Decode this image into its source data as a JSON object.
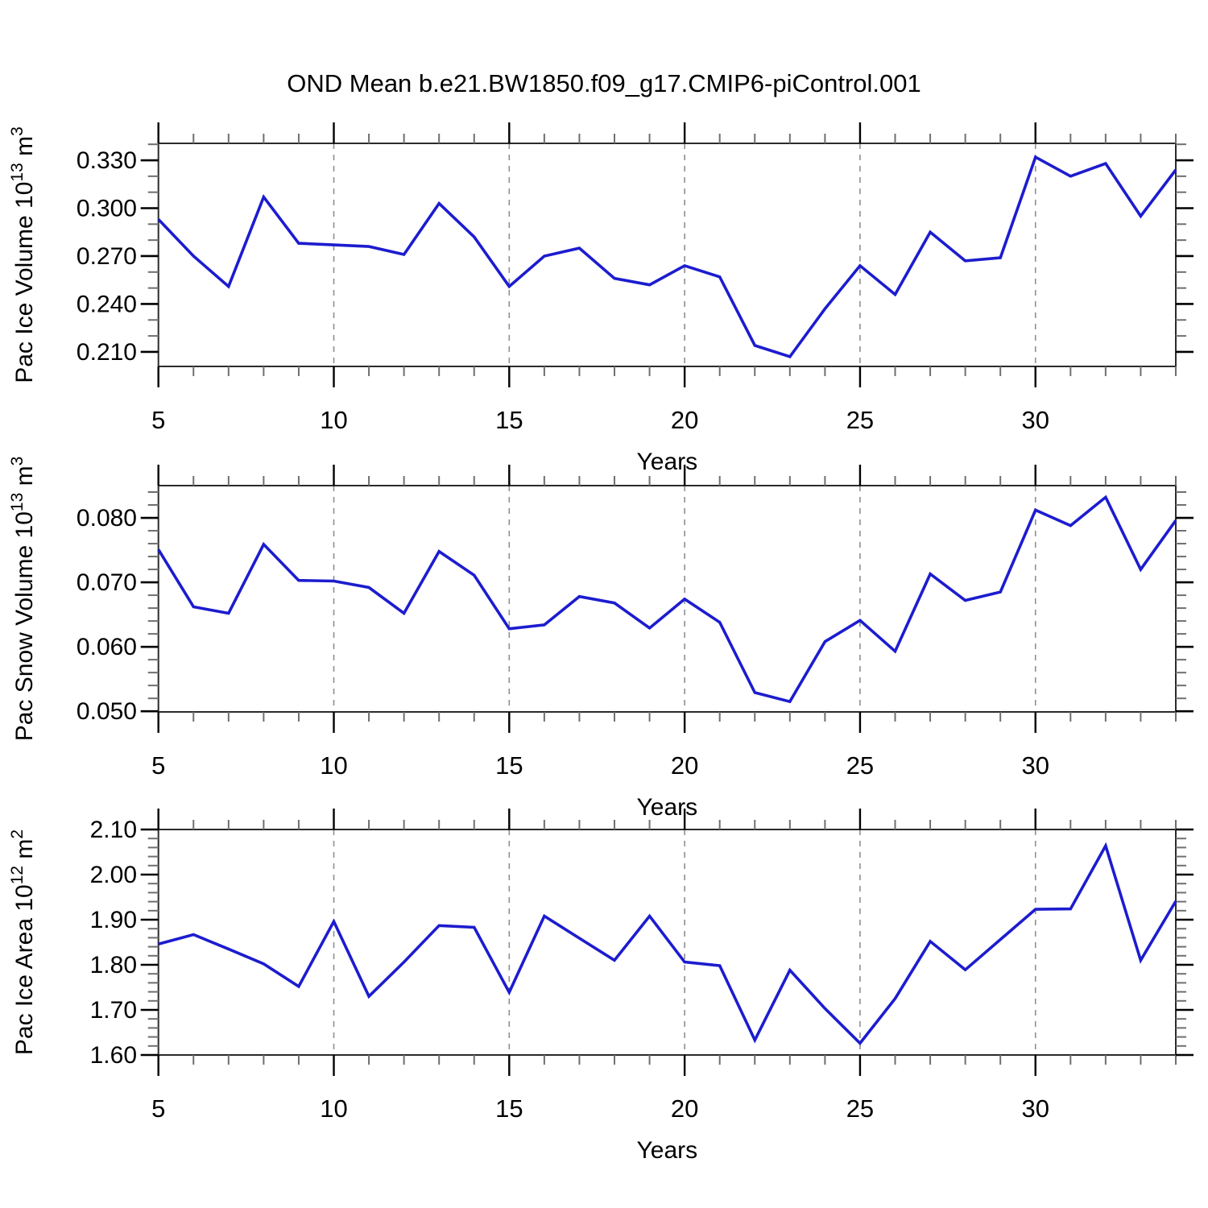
{
  "title": "OND Mean b.e21.BW1850.f09_g17.CMIP6-piControl.001",
  "xlabel": "Years",
  "colors": {
    "line": "#1c1ccf",
    "grid": "#8f8f8f",
    "axis": "#2b2b2b",
    "tick_major": "#000000",
    "tick_minor": "#6f6f6f",
    "text": "#000000"
  },
  "x_major_tick_labels": [
    "5",
    "10",
    "15",
    "20",
    "25",
    "30"
  ],
  "chart_data": [
    {
      "type": "line",
      "name": "pac-ice-volume",
      "ylabel_prefix": "Pac Ice Volume 10",
      "ylabel_exp": "13",
      "ylabel_unit": " m",
      "ylabel_unit_exp": "3",
      "xlabel": "Years",
      "xlim": [
        5,
        34
      ],
      "ylim": [
        0.2009,
        0.3406
      ],
      "x_major_ticks": [
        5,
        10,
        15,
        20,
        25,
        30
      ],
      "grid_years": [
        10,
        15,
        20,
        25,
        30
      ],
      "ytick_values": [
        0.21,
        0.24,
        0.27,
        0.3,
        0.33
      ],
      "ytick_labels": [
        "0.210",
        "0.240",
        "0.270",
        "0.300",
        "0.330"
      ],
      "yminor_step": 0.01,
      "x": [
        5,
        6,
        7,
        8,
        9,
        10,
        11,
        12,
        13,
        14,
        15,
        16,
        17,
        18,
        19,
        20,
        21,
        22,
        23,
        24,
        25,
        26,
        27,
        28,
        29,
        30,
        31,
        32,
        33,
        34
      ],
      "values": [
        0.293,
        0.27,
        0.251,
        0.307,
        0.278,
        0.277,
        0.276,
        0.271,
        0.303,
        0.282,
        0.251,
        0.27,
        0.275,
        0.256,
        0.252,
        0.264,
        0.257,
        0.214,
        0.207,
        0.237,
        0.264,
        0.246,
        0.285,
        0.267,
        0.269,
        0.332,
        0.32,
        0.328,
        0.295,
        0.324
      ]
    },
    {
      "type": "line",
      "name": "pac-snow-volume",
      "ylabel_prefix": "Pac Snow Volume 10",
      "ylabel_exp": "13",
      "ylabel_unit": " m",
      "ylabel_unit_exp": "3",
      "xlabel": "Years",
      "xlim": [
        5,
        34
      ],
      "ylim": [
        0.0499,
        0.085
      ],
      "x_major_ticks": [
        5,
        10,
        15,
        20,
        25,
        30
      ],
      "grid_years": [
        10,
        15,
        20,
        25,
        30
      ],
      "ytick_values": [
        0.05,
        0.06,
        0.07,
        0.08
      ],
      "ytick_labels": [
        "0.050",
        "0.060",
        "0.070",
        "0.080"
      ],
      "yminor_step": 0.002,
      "x": [
        5,
        6,
        7,
        8,
        9,
        10,
        11,
        12,
        13,
        14,
        15,
        16,
        17,
        18,
        19,
        20,
        21,
        22,
        23,
        24,
        25,
        26,
        27,
        28,
        29,
        30,
        31,
        32,
        33,
        34
      ],
      "values": [
        0.0751,
        0.0662,
        0.0652,
        0.0759,
        0.0703,
        0.0702,
        0.0692,
        0.0652,
        0.0748,
        0.0711,
        0.0628,
        0.0634,
        0.0678,
        0.0668,
        0.0629,
        0.0674,
        0.0638,
        0.0529,
        0.0515,
        0.0608,
        0.0641,
        0.0593,
        0.0713,
        0.0672,
        0.0685,
        0.0812,
        0.0788,
        0.0832,
        0.072,
        0.0796
      ]
    },
    {
      "type": "line",
      "name": "pac-ice-area",
      "ylabel_prefix": "Pac Ice Area 10",
      "ylabel_exp": "12",
      "ylabel_unit": " m",
      "ylabel_unit_exp": "2",
      "xlabel": "Years",
      "xlim": [
        5,
        34
      ],
      "ylim": [
        1.6,
        2.1
      ],
      "x_major_ticks": [
        5,
        10,
        15,
        20,
        25,
        30
      ],
      "grid_years": [
        10,
        15,
        20,
        25,
        30
      ],
      "ytick_values": [
        1.6,
        1.7,
        1.8,
        1.9,
        2.0,
        2.1
      ],
      "ytick_labels": [
        "1.60",
        "1.70",
        "1.80",
        "1.90",
        "2.00",
        "2.10"
      ],
      "yminor_step": 0.02,
      "x": [
        5,
        6,
        7,
        8,
        9,
        10,
        11,
        12,
        13,
        14,
        15,
        16,
        17,
        18,
        19,
        20,
        21,
        22,
        23,
        24,
        25,
        26,
        27,
        28,
        29,
        30,
        31,
        32,
        33,
        34
      ],
      "values": [
        1.846,
        1.867,
        1.835,
        1.802,
        1.752,
        1.896,
        1.73,
        1.806,
        1.887,
        1.883,
        1.739,
        1.908,
        1.859,
        1.81,
        1.908,
        1.806,
        1.798,
        1.633,
        1.788,
        1.703,
        1.626,
        1.725,
        1.852,
        1.789,
        1.856,
        1.923,
        1.924,
        2.064,
        1.81,
        1.941
      ]
    }
  ]
}
